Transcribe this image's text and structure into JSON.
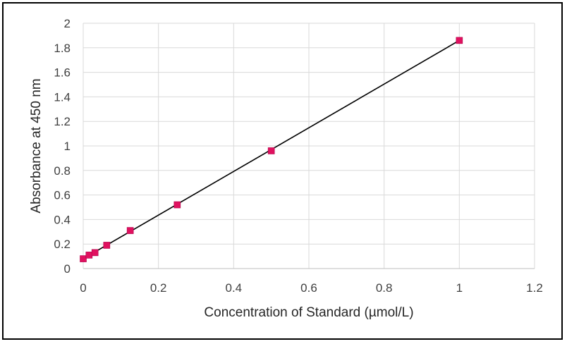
{
  "chart_data": {
    "type": "scatter",
    "title": "",
    "xlabel": "Concentration of Standard (µmol/L)",
    "ylabel": "Absorbance at 450 nm",
    "xlim": [
      0,
      1.2
    ],
    "ylim": [
      0,
      2
    ],
    "x_ticks": [
      "0",
      "0.2",
      "0.4",
      "0.6",
      "0.8",
      "1",
      "1.2"
    ],
    "y_ticks": [
      "0",
      "0.2",
      "0.4",
      "0.6",
      "0.8",
      "1",
      "1.2",
      "1.4",
      "1.6",
      "1.8",
      "2"
    ],
    "grid": true,
    "legend": "none",
    "series": [
      {
        "marker_color": "#e0115f",
        "line_color": "#000000",
        "x": [
          0,
          0.0156,
          0.03125,
          0.0625,
          0.125,
          0.25,
          0.5,
          1
        ],
        "y": [
          0.08,
          0.11,
          0.13,
          0.19,
          0.31,
          0.52,
          0.96,
          1.86
        ]
      }
    ],
    "trendline": {
      "type": "linear",
      "x": [
        0,
        1
      ],
      "y": [
        0.08,
        1.86
      ]
    }
  }
}
